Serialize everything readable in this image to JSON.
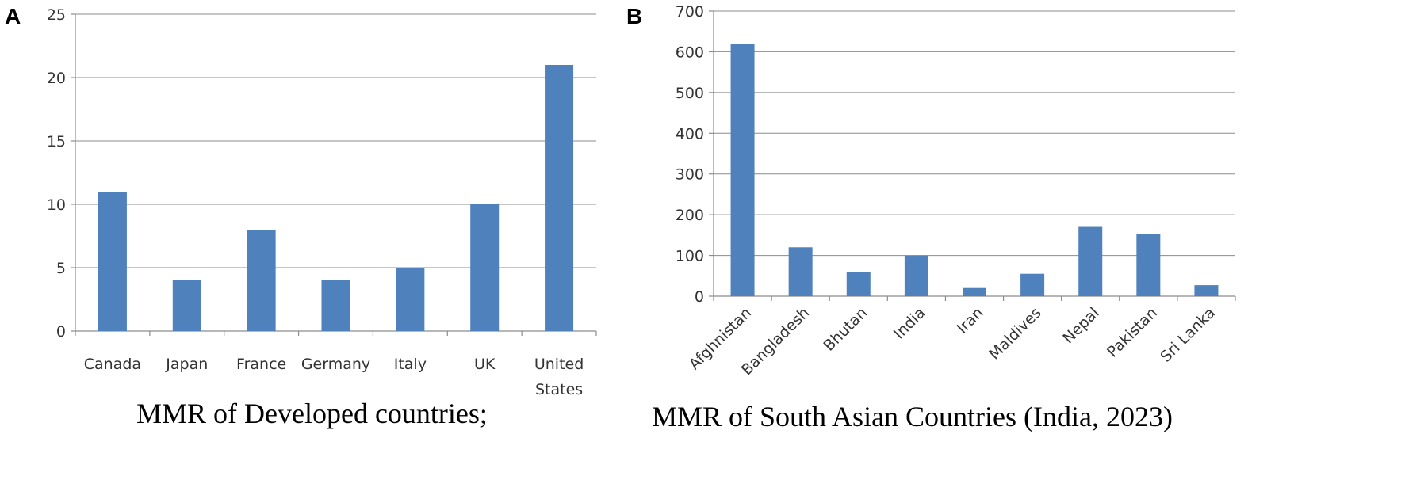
{
  "chart_data": [
    {
      "type": "bar",
      "panel_label": "A",
      "caption": "MMR of Developed countries;",
      "categories": [
        "Canada",
        "Japan",
        "France",
        "Germany",
        "Italy",
        "UK",
        "United States"
      ],
      "values": [
        11,
        4,
        8,
        4,
        5,
        10,
        21
      ],
      "ylim": [
        0,
        25
      ],
      "yticks": [
        0,
        5,
        10,
        15,
        20,
        25
      ],
      "grid": true,
      "bar_color": "#4f81bd"
    },
    {
      "type": "bar",
      "panel_label": "B",
      "caption": "MMR of South Asian Countries (India, 2023)",
      "categories": [
        "Afghnistan",
        "Bangladesh",
        "Bhutan",
        "India",
        "Iran",
        "Maldives",
        "Nepal",
        "Pakistan",
        "Sri Lanka"
      ],
      "values": [
        620,
        120,
        60,
        100,
        20,
        55,
        172,
        152,
        27
      ],
      "ylim": [
        0,
        700
      ],
      "yticks": [
        0,
        100,
        200,
        300,
        400,
        500,
        600,
        700
      ],
      "grid": true,
      "bar_color": "#4f81bd"
    }
  ]
}
